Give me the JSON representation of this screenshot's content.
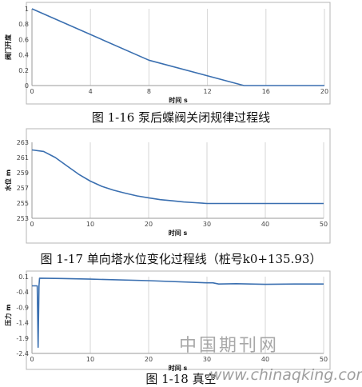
{
  "chart_data": [
    {
      "type": "line",
      "xlabel": "时间 s",
      "ylabel": "阀门开度",
      "xlim": [
        0,
        20
      ],
      "ylim": [
        0,
        1
      ],
      "xticks": [
        0,
        4,
        8,
        12,
        16,
        20
      ],
      "yticks": [
        0,
        0.2,
        0.4,
        0.6,
        0.8,
        1
      ],
      "ytick_labels": [
        "0",
        "0.2",
        "0.4",
        "0.6",
        "0.8",
        "1"
      ],
      "grid": "vertical",
      "color": "#3a6fb0",
      "series": [
        {
          "x": [
            0,
            8,
            14.5,
            20
          ],
          "y": [
            1,
            0.33,
            0,
            0
          ]
        }
      ],
      "caption": "图 1-16 泵后蝶阀关闭规律过程线"
    },
    {
      "type": "line",
      "xlabel": "时间 s",
      "ylabel": "水位 m",
      "xlim": [
        0,
        50
      ],
      "ylim": [
        253,
        263
      ],
      "xticks": [
        0,
        10,
        20,
        30,
        40,
        50
      ],
      "yticks": [
        253,
        255,
        257,
        259,
        261,
        263
      ],
      "ytick_labels": [
        "253",
        "255",
        "257",
        "259",
        "261",
        "263"
      ],
      "grid": "vertical",
      "color": "#3a6fb0",
      "series": [
        {
          "x": [
            0,
            2,
            4,
            6,
            8,
            10,
            12,
            14,
            16,
            18,
            20,
            22,
            24,
            26,
            28,
            30,
            35,
            40,
            45,
            50
          ],
          "y": [
            262,
            261.8,
            261.0,
            259.9,
            258.8,
            257.9,
            257.2,
            256.7,
            256.3,
            255.95,
            255.7,
            255.45,
            255.3,
            255.15,
            255.05,
            254.95,
            254.95,
            254.95,
            254.95,
            254.95
          ]
        }
      ],
      "caption": "图 1-17 单向塔水位变化过程线（桩号k0+135.93）"
    },
    {
      "type": "line",
      "xlabel": "时间 s",
      "ylabel": "压力 m",
      "xlim": [
        0,
        50
      ],
      "ylim": [
        -2.4,
        0.1
      ],
      "xticks": [
        0,
        10,
        20,
        30,
        40,
        50
      ],
      "yticks": [
        -2.4,
        -1.9,
        -1.4,
        -0.9,
        -0.4,
        0.1
      ],
      "ytick_labels": [
        "-2.4",
        "-1.9",
        "-1.4",
        "-0.9",
        "-0.4",
        "0.1"
      ],
      "grid": "vertical",
      "color": "#3a6fb0",
      "series": [
        {
          "x": [
            0,
            0.9,
            1.05,
            1.2,
            1.3,
            1.4,
            5,
            10,
            20,
            30,
            31,
            32,
            35,
            40,
            45,
            50
          ],
          "y": [
            -0.2,
            -0.2,
            -2.2,
            -0.2,
            0.05,
            0.05,
            0.04,
            0.02,
            -0.03,
            -0.1,
            -0.1,
            -0.14,
            -0.13,
            -0.15,
            -0.14,
            -0.14
          ]
        }
      ],
      "caption": "图 1-18 真空"
    }
  ],
  "watermark": {
    "line1": "中国期刊网",
    "line2": "www.chinaqking.com"
  }
}
